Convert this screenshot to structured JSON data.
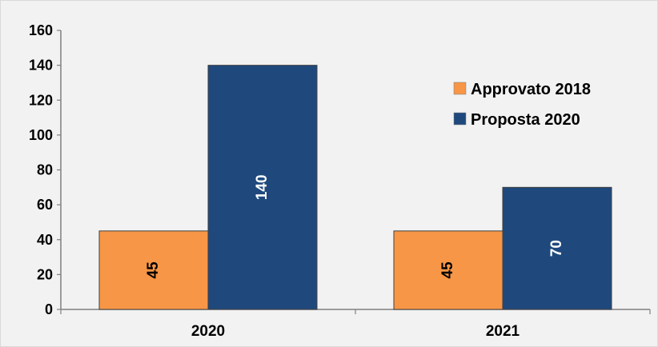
{
  "chart_data": {
    "type": "bar",
    "categories": [
      "2020",
      "2021"
    ],
    "series": [
      {
        "name": "Approvato 2018",
        "values": [
          45,
          45
        ],
        "color": "#f79646",
        "label_color": "#000000"
      },
      {
        "name": "Proposta 2020",
        "values": [
          140,
          70
        ],
        "color": "#1f497d",
        "label_color": "#ffffff"
      }
    ],
    "yticks": [
      "0",
      "20",
      "40",
      "60",
      "80",
      "100",
      "120",
      "140",
      "160"
    ],
    "ylim": [
      0,
      160
    ],
    "grid": false,
    "legend_position": "right",
    "data_labels": true
  }
}
